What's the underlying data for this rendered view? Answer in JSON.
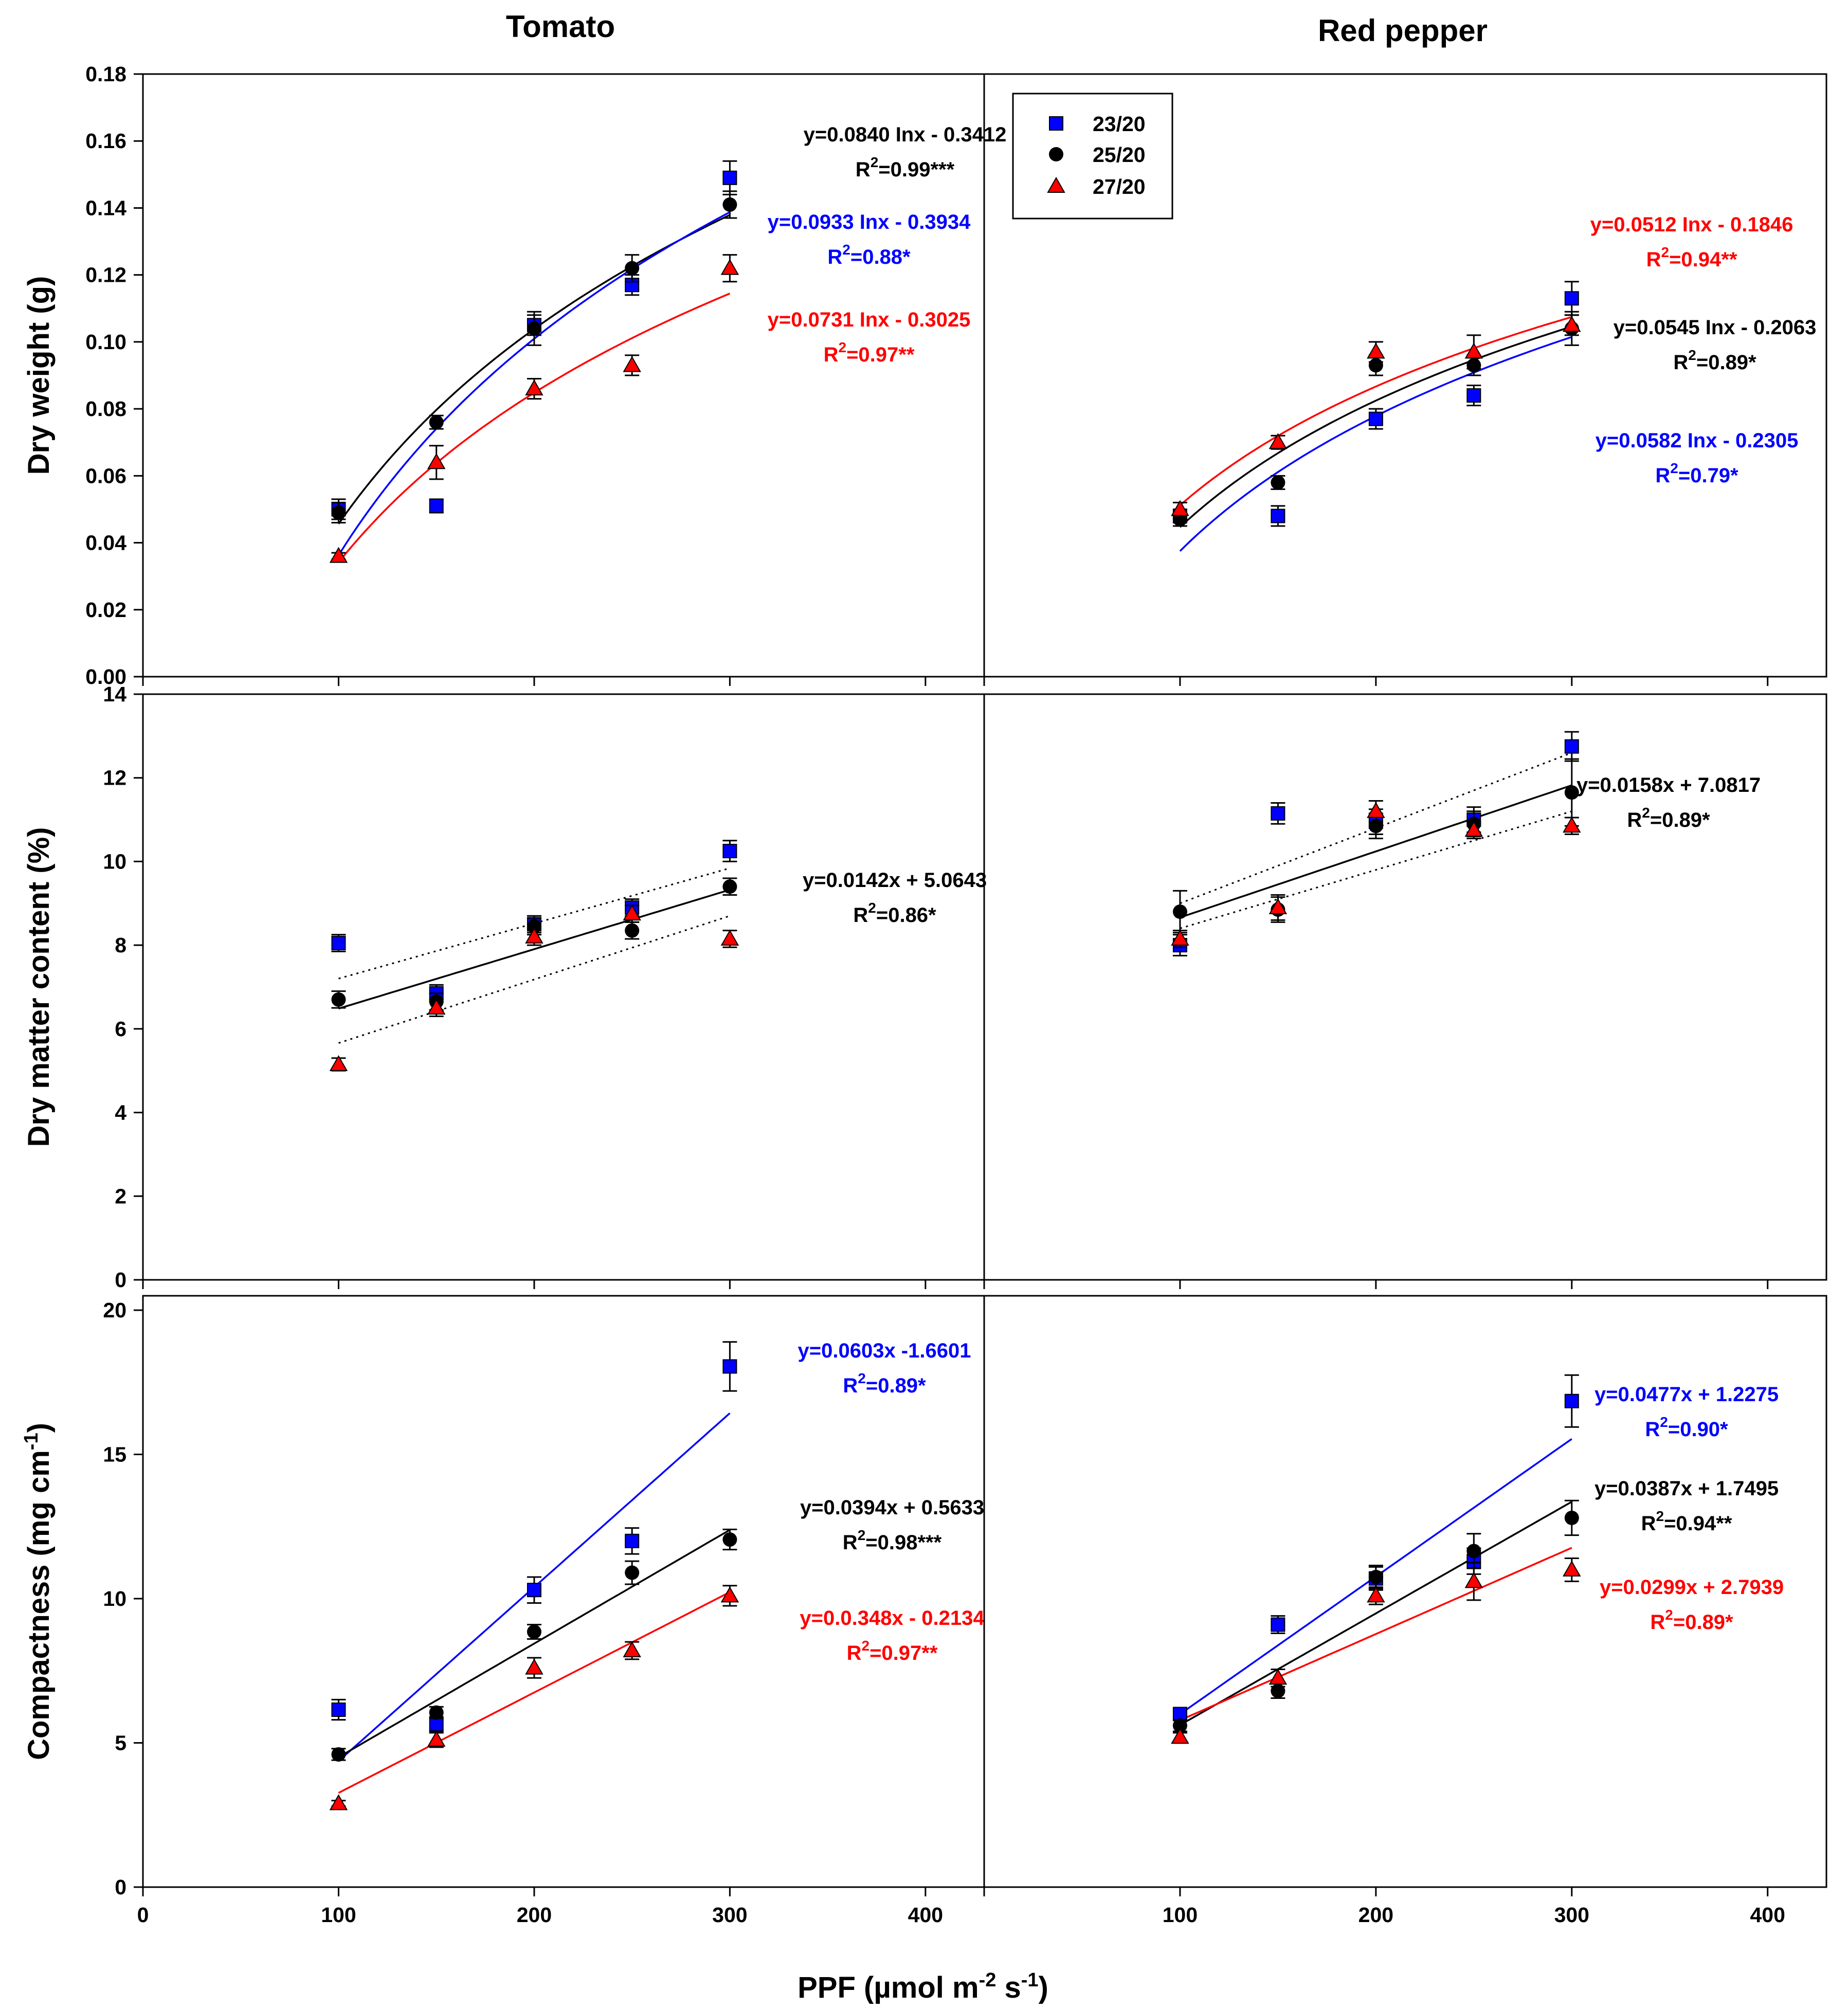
{
  "colors": {
    "23/20": "#0000ff",
    "25/20": "#000000",
    "27/20": "#ff0000"
  },
  "figure": {
    "col_titles": [
      "Tomato",
      "Red pepper"
    ],
    "xlabel": "PPF (µmol m⁻² s⁻¹)",
    "xlabel_main": "PPF (",
    "xlabel_unit": "µmol m",
    "xlabel_exp1": "-2",
    "xlabel_mid": " s",
    "xlabel_exp2": "-1",
    "xlabel_close": ")",
    "xticks": [
      "0",
      "100",
      "200",
      "300",
      "400"
    ],
    "legend": [
      {
        "label": "23/20",
        "marker": "square"
      },
      {
        "label": "25/20",
        "marker": "circle"
      },
      {
        "label": "27/20",
        "marker": "triangle"
      }
    ]
  },
  "chart_data": [
    {
      "type": "scatter",
      "id": "dw-tomato",
      "row": "Dry weight (g)",
      "col": "Tomato",
      "ylabel": "Dry weight (g)",
      "xlim": [
        0,
        430
      ],
      "ylim": [
        0,
        0.18
      ],
      "yticks": [
        "0.00",
        "0.02",
        "0.04",
        "0.06",
        "0.08",
        "0.10",
        "0.12",
        "0.14",
        "0.16",
        "0.18"
      ],
      "x": [
        100,
        150,
        200,
        250,
        300
      ],
      "series": [
        {
          "name": "23/20",
          "values": [
            0.05,
            0.051,
            0.105,
            0.117,
            0.149
          ],
          "err": [
            0.003,
            0.002,
            0.003,
            0.003,
            0.005
          ]
        },
        {
          "name": "25/20",
          "values": [
            0.049,
            0.076,
            0.104,
            0.122,
            0.141
          ],
          "err": [
            0.003,
            0.002,
            0.005,
            0.004,
            0.004
          ]
        },
        {
          "name": "27/20",
          "values": [
            0.036,
            0.064,
            0.086,
            0.093,
            0.122
          ],
          "err": [
            0.001,
            0.005,
            0.003,
            0.003,
            0.004
          ]
        }
      ],
      "fits": [
        {
          "series": "25/20",
          "kind": "log",
          "a": 0.084,
          "b": -0.3412,
          "x0": 100,
          "x1": 300,
          "dotted": false
        },
        {
          "series": "23/20",
          "kind": "log",
          "a": 0.0933,
          "b": -0.3934,
          "x0": 100,
          "x1": 300,
          "dotted": false
        },
        {
          "series": "27/20",
          "kind": "log",
          "a": 0.0731,
          "b": -0.3025,
          "x0": 100,
          "x1": 300,
          "dotted": false
        }
      ],
      "annotations": [
        {
          "series": "25/20",
          "eq": "y=0.0840 Inx - 0.3412",
          "r2": "=0.99***"
        },
        {
          "series": "23/20",
          "eq": "y=0.0933 Inx - 0.3934",
          "r2": "=0.88*"
        },
        {
          "series": "27/20",
          "eq": "y=0.0731 Inx - 0.3025",
          "r2": "=0.97**"
        }
      ]
    },
    {
      "type": "scatter",
      "id": "dw-pepper",
      "row": "Dry weight (g)",
      "col": "Red pepper",
      "ylabel": "",
      "xlim": [
        0,
        430
      ],
      "ylim": [
        0,
        0.18
      ],
      "x": [
        100,
        150,
        200,
        250,
        300
      ],
      "series": [
        {
          "name": "23/20",
          "values": [
            0.048,
            0.048,
            0.077,
            0.084,
            0.113
          ],
          "err": [
            0.002,
            0.003,
            0.003,
            0.003,
            0.005
          ]
        },
        {
          "name": "25/20",
          "values": [
            0.047,
            0.058,
            0.093,
            0.093,
            0.104
          ],
          "err": [
            0.002,
            0.002,
            0.003,
            0.003,
            0.005
          ]
        },
        {
          "name": "27/20",
          "values": [
            0.05,
            0.07,
            0.097,
            0.097,
            0.105
          ],
          "err": [
            0.002,
            0.002,
            0.003,
            0.005,
            0.003
          ]
        }
      ],
      "fits": [
        {
          "series": "27/20",
          "kind": "log",
          "a": 0.0512,
          "b": -0.1846,
          "x0": 100,
          "x1": 300,
          "dotted": false
        },
        {
          "series": "25/20",
          "kind": "log",
          "a": 0.0545,
          "b": -0.2063,
          "x0": 100,
          "x1": 300,
          "dotted": false
        },
        {
          "series": "23/20",
          "kind": "log",
          "a": 0.0582,
          "b": -0.2305,
          "x0": 100,
          "x1": 300,
          "dotted": false
        }
      ],
      "annotations": [
        {
          "series": "27/20",
          "eq": "y=0.0512 Inx - 0.1846",
          "r2": "=0.94**"
        },
        {
          "series": "25/20",
          "eq": "y=0.0545 Inx - 0.2063",
          "r2": "=0.89*"
        },
        {
          "series": "23/20",
          "eq": "y=0.0582 Inx - 0.2305",
          "r2": "=0.79*"
        }
      ]
    },
    {
      "type": "scatter",
      "id": "dmc-tomato",
      "row": "Dry matter content (%)",
      "col": "Tomato",
      "ylabel": "Dry matter content (%)",
      "xlim": [
        0,
        430
      ],
      "ylim": [
        0,
        14
      ],
      "yticks": [
        "0",
        "2",
        "4",
        "6",
        "8",
        "10",
        "12",
        "14"
      ],
      "x": [
        100,
        150,
        200,
        250,
        300
      ],
      "series": [
        {
          "name": "23/20",
          "values": [
            8.05,
            6.85,
            8.5,
            8.9,
            10.25
          ],
          "err": [
            0.2,
            0.2,
            0.2,
            0.2,
            0.25
          ]
        },
        {
          "name": "25/20",
          "values": [
            6.7,
            6.65,
            8.45,
            8.35,
            9.4
          ],
          "err": [
            0.2,
            0.2,
            0.2,
            0.2,
            0.2
          ]
        },
        {
          "name": "27/20",
          "values": [
            5.15,
            6.5,
            8.2,
            8.75,
            8.15
          ],
          "err": [
            0.15,
            0.2,
            0.2,
            0.2,
            0.2
          ]
        }
      ],
      "fits": [
        {
          "series": "25/20",
          "kind": "linear",
          "a": 0.0142,
          "b": 5.0643,
          "x0": 100,
          "x1": 300,
          "dotted": false
        },
        {
          "series": "25/20",
          "kind": "linear",
          "a": 0.0132,
          "b": 5.88,
          "x0": 100,
          "x1": 300,
          "dotted": true
        },
        {
          "series": "25/20",
          "kind": "linear",
          "a": 0.0152,
          "b": 4.14,
          "x0": 100,
          "x1": 300,
          "dotted": true
        }
      ],
      "annotations": [
        {
          "series": "25/20",
          "eq": "y=0.0142x + 5.0643",
          "r2": "=0.86*"
        }
      ]
    },
    {
      "type": "scatter",
      "id": "dmc-pepper",
      "row": "Dry matter content (%)",
      "col": "Red pepper",
      "ylabel": "",
      "xlim": [
        0,
        430
      ],
      "ylim": [
        0,
        14
      ],
      "x": [
        100,
        150,
        200,
        250,
        300
      ],
      "series": [
        {
          "name": "23/20",
          "values": [
            8.0,
            11.15,
            10.95,
            11.0,
            12.75
          ],
          "err": [
            0.25,
            0.25,
            0.3,
            0.3,
            0.35
          ]
        },
        {
          "name": "25/20",
          "values": [
            8.8,
            8.85,
            10.85,
            10.9,
            11.65
          ],
          "err": [
            0.5,
            0.3,
            0.3,
            0.3,
            0.8
          ]
        },
        {
          "name": "27/20",
          "values": [
            8.15,
            8.9,
            11.2,
            10.75,
            10.85
          ],
          "err": [
            0.2,
            0.3,
            0.25,
            0.2,
            0.2
          ]
        }
      ],
      "fits": [
        {
          "series": "25/20",
          "kind": "linear",
          "a": 0.0158,
          "b": 7.0817,
          "x0": 100,
          "x1": 300,
          "dotted": false
        },
        {
          "series": "25/20",
          "kind": "linear",
          "a": 0.018,
          "b": 7.2,
          "x0": 100,
          "x1": 300,
          "dotted": true
        },
        {
          "series": "25/20",
          "kind": "linear",
          "a": 0.014,
          "b": 7.0,
          "x0": 100,
          "x1": 300,
          "dotted": true
        }
      ],
      "annotations": [
        {
          "series": "25/20",
          "eq": "y=0.0158x + 7.0817",
          "r2": "=0.89*"
        }
      ]
    },
    {
      "type": "scatter",
      "id": "comp-tomato",
      "row": "Compactness (mg cm-1)",
      "col": "Tomato",
      "ylabel": "Compactness (mg cm",
      "ylabel_exp": "-1",
      "ylabel_close": ")",
      "xlim": [
        0,
        430
      ],
      "ylim": [
        0,
        20.5
      ],
      "yticks": [
        "0",
        "5",
        "10",
        "15",
        "20"
      ],
      "x": [
        100,
        150,
        200,
        250,
        300
      ],
      "series": [
        {
          "name": "23/20",
          "values": [
            6.15,
            5.65,
            10.3,
            12.0,
            18.05
          ],
          "err": [
            0.35,
            0.25,
            0.45,
            0.45,
            0.85
          ]
        },
        {
          "name": "25/20",
          "values": [
            4.6,
            6.05,
            8.85,
            10.9,
            12.05
          ],
          "err": [
            0.2,
            0.2,
            0.25,
            0.4,
            0.35
          ]
        },
        {
          "name": "27/20",
          "values": [
            2.9,
            5.1,
            7.6,
            8.2,
            10.1
          ],
          "err": [
            0.1,
            0.25,
            0.35,
            0.3,
            0.35
          ]
        }
      ],
      "fits": [
        {
          "series": "23/20",
          "kind": "linear",
          "a": 0.0603,
          "b": -1.6601,
          "x0": 100,
          "x1": 300,
          "dotted": false
        },
        {
          "series": "25/20",
          "kind": "linear",
          "a": 0.0394,
          "b": 0.5633,
          "x0": 100,
          "x1": 300,
          "dotted": false
        },
        {
          "series": "27/20",
          "kind": "linear",
          "a": 0.0348,
          "b": -0.2134,
          "x0": 100,
          "x1": 300,
          "dotted": false
        }
      ],
      "annotations": [
        {
          "series": "23/20",
          "eq": "y=0.0603x -1.6601",
          "r2": "=0.89*"
        },
        {
          "series": "25/20",
          "eq": "y=0.0394x + 0.5633",
          "r2": "=0.98***"
        },
        {
          "series": "27/20",
          "eq": "y=0.0.348x - 0.2134",
          "r2": "=0.97**"
        }
      ]
    },
    {
      "type": "scatter",
      "id": "comp-pepper",
      "row": "Compactness (mg cm-1)",
      "col": "Red pepper",
      "ylabel": "",
      "xlim": [
        0,
        430
      ],
      "ylim": [
        0,
        20.5
      ],
      "x": [
        100,
        150,
        200,
        250,
        300
      ],
      "series": [
        {
          "name": "23/20",
          "values": [
            6.0,
            9.1,
            10.7,
            11.3,
            16.85
          ],
          "err": [
            0.2,
            0.3,
            0.4,
            0.45,
            0.9
          ]
        },
        {
          "name": "25/20",
          "values": [
            5.6,
            6.8,
            10.75,
            11.65,
            12.8
          ],
          "err": [
            0.2,
            0.25,
            0.4,
            0.6,
            0.6
          ]
        },
        {
          "name": "27/20",
          "values": [
            5.2,
            7.25,
            10.1,
            10.6,
            11.0
          ],
          "err": [
            0.15,
            0.3,
            0.3,
            0.65,
            0.4
          ]
        }
      ],
      "fits": [
        {
          "series": "23/20",
          "kind": "linear",
          "a": 0.0477,
          "b": 1.2275,
          "x0": 100,
          "x1": 300,
          "dotted": false
        },
        {
          "series": "25/20",
          "kind": "linear",
          "a": 0.0387,
          "b": 1.7495,
          "x0": 100,
          "x1": 300,
          "dotted": false
        },
        {
          "series": "27/20",
          "kind": "linear",
          "a": 0.0299,
          "b": 2.7939,
          "x0": 100,
          "x1": 300,
          "dotted": false
        }
      ],
      "annotations": [
        {
          "series": "23/20",
          "eq": "y=0.0477x + 1.2275",
          "r2": "=0.90*"
        },
        {
          "series": "25/20",
          "eq": "y=0.0387x + 1.7495",
          "r2": "=0.94**"
        },
        {
          "series": "27/20",
          "eq": "y=0.0299x + 2.7939",
          "r2": "=0.89*"
        }
      ]
    }
  ]
}
